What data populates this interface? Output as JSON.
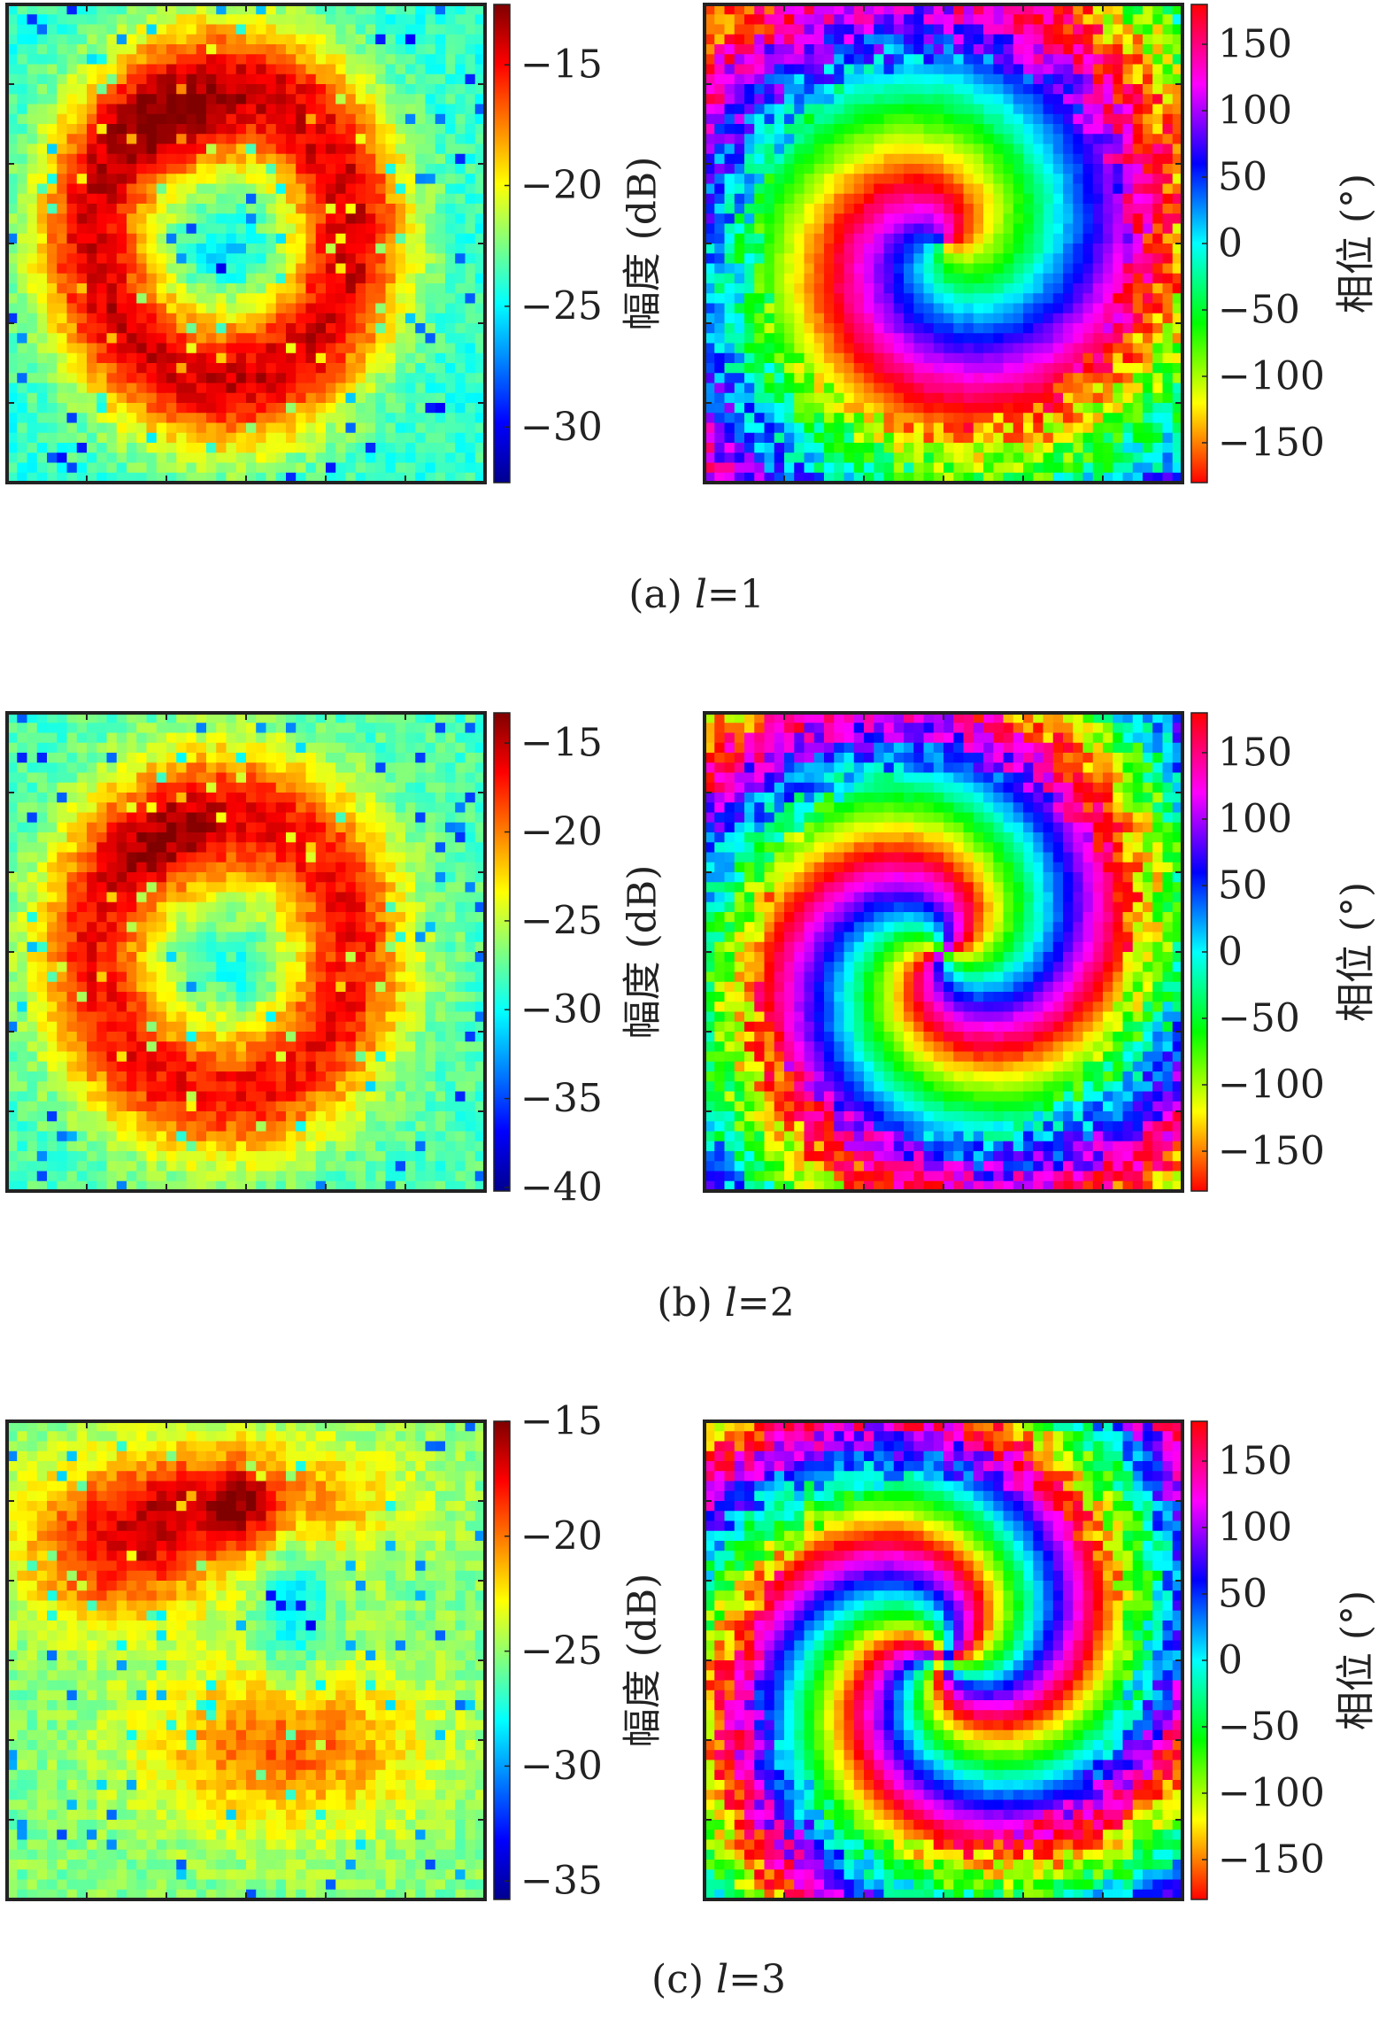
{
  "panels": [
    {
      "caption_prefix": "(a)",
      "caption_var": "l",
      "caption_value": "=1",
      "amplitude": {
        "label": "幅度 (dB)",
        "ticks": [
          "−15",
          "−20",
          "−25",
          "−30"
        ],
        "tick_values": [
          -15,
          -20,
          -25,
          -30
        ],
        "range": [
          -32.3,
          -12.5
        ]
      },
      "phase": {
        "label": "相位 (°)",
        "ticks": [
          "150",
          "100",
          "50",
          "0",
          "−50",
          "−100",
          "−150"
        ],
        "tick_values": [
          150,
          100,
          50,
          0,
          -50,
          -100,
          -150
        ],
        "range": [
          -180,
          180
        ]
      }
    },
    {
      "caption_prefix": "(b)",
      "caption_var": "l",
      "caption_value": "=2",
      "amplitude": {
        "label": "幅度 (dB)",
        "ticks": [
          "−15",
          "−20",
          "−25",
          "−30",
          "−35",
          "−40"
        ],
        "tick_values": [
          -15,
          -20,
          -25,
          -30,
          -35,
          -40
        ],
        "range": [
          -40.2,
          -13.3
        ]
      },
      "phase": {
        "label": "相位 (°)",
        "ticks": [
          "150",
          "100",
          "50",
          "0",
          "−50",
          "−100",
          "−150"
        ],
        "tick_values": [
          150,
          100,
          50,
          0,
          -50,
          -100,
          -150
        ],
        "range": [
          -180,
          180
        ]
      }
    },
    {
      "caption_prefix": "(c)",
      "caption_var": "l",
      "caption_value": "=3",
      "amplitude": {
        "label": "幅度 (dB)",
        "ticks": [
          "−15",
          "−20",
          "−25",
          "−30",
          "−35"
        ],
        "tick_values": [
          -15,
          -20,
          -25,
          -30,
          -35
        ],
        "range": [
          -35.8,
          -15
        ]
      },
      "phase": {
        "label": "相位 (°)",
        "ticks": [
          "150",
          "100",
          "50",
          "0",
          "−50",
          "−100",
          "−150"
        ],
        "tick_values": [
          150,
          100,
          50,
          0,
          -50,
          -100,
          -150
        ],
        "range": [
          -180,
          180
        ]
      }
    }
  ],
  "colormap": "jet",
  "grid": false,
  "chart_data": [
    {
      "type": "heatmap",
      "panel": "a",
      "quantity": "amplitude",
      "unit": "dB",
      "colorbar_range": [
        -32.3,
        -12.5
      ],
      "orbital_mode_l": 1,
      "peak_region": "upper-left center",
      "peak_value": -13,
      "structure": "single ring with low center"
    },
    {
      "type": "heatmap",
      "panel": "a",
      "quantity": "phase",
      "unit": "°",
      "colorbar_range": [
        -180,
        180
      ],
      "orbital_mode_l": 1,
      "spiral_arms": 1,
      "structure": "single-arm phase spiral"
    },
    {
      "type": "heatmap",
      "panel": "b",
      "quantity": "amplitude",
      "unit": "dB",
      "colorbar_range": [
        -40.2,
        -13.3
      ],
      "orbital_mode_l": 2,
      "peak_region": "upper-left center",
      "peak_value": -14,
      "structure": "ring with low center"
    },
    {
      "type": "heatmap",
      "panel": "b",
      "quantity": "phase",
      "unit": "°",
      "colorbar_range": [
        -180,
        180
      ],
      "orbital_mode_l": 2,
      "spiral_arms": 2,
      "structure": "two-arm phase spiral"
    },
    {
      "type": "heatmap",
      "panel": "c",
      "quantity": "amplitude",
      "unit": "dB",
      "colorbar_range": [
        -35.8,
        -15
      ],
      "orbital_mode_l": 3,
      "peak_region": "upper center",
      "peak_value": -15,
      "structure": "broken ring"
    },
    {
      "type": "heatmap",
      "panel": "c",
      "quantity": "phase",
      "unit": "°",
      "colorbar_range": [
        -180,
        180
      ],
      "orbital_mode_l": 3,
      "spiral_arms": 3,
      "structure": "three-arm phase spiral"
    }
  ]
}
